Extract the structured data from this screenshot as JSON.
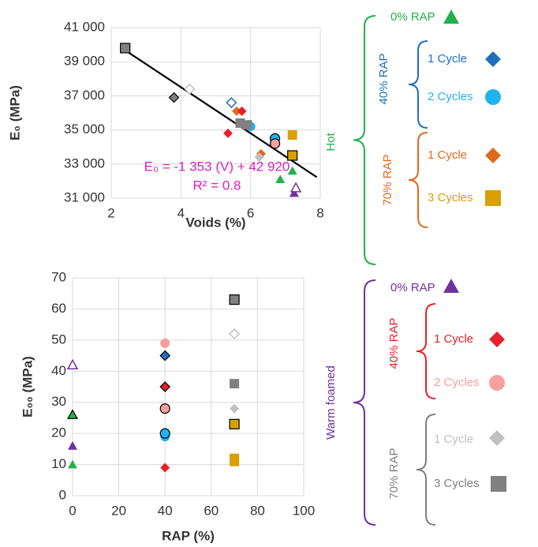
{
  "chart_data": [
    {
      "type": "scatter",
      "xlabel": "Voids (%)",
      "ylabel": "E₀ (MPa)",
      "xlim": [
        2,
        8
      ],
      "xticks": [
        2,
        4,
        6,
        8
      ],
      "ylim": [
        31000,
        41000
      ],
      "yticks": [
        {
          "value": 31000,
          "label": "31 000"
        },
        {
          "value": 33000,
          "label": "33 000"
        },
        {
          "value": 35000,
          "label": "35 000"
        },
        {
          "value": 37000,
          "label": "37 000"
        },
        {
          "value": 39000,
          "label": "39 000"
        },
        {
          "value": 41000,
          "label": "41 000"
        }
      ],
      "grid": true,
      "annotations": [
        "E₀ = -1 353 (V) + 42 920",
        "R² = 0.8"
      ],
      "trendline": {
        "slope": -1353,
        "intercept": 42920,
        "color": "#000000"
      },
      "series": [
        {
          "color": "#22b14c",
          "marker": "triangle",
          "fill": "solid",
          "x": [
            7.2,
            6.85
          ],
          "values": [
            32600,
            32100
          ]
        },
        {
          "color": "#7030a0",
          "marker": "triangle",
          "fill": "solid",
          "x": [
            7.25
          ],
          "values": [
            31300
          ]
        },
        {
          "color": "#7030a0",
          "marker": "triangle",
          "fill": "open",
          "x": [
            7.3
          ],
          "values": [
            31600
          ]
        },
        {
          "color": "#1f6fbf",
          "marker": "diamond",
          "fill": "open",
          "x": [
            5.45
          ],
          "values": [
            36600
          ]
        },
        {
          "color": "#1fb3f0",
          "marker": "circle",
          "fill": "solid",
          "x": [
            6.0
          ],
          "values": [
            35200
          ]
        },
        {
          "color": "#1fb3f0",
          "marker": "circle",
          "fill": "outlined",
          "x": [
            6.7
          ],
          "values": [
            34500
          ]
        },
        {
          "color": "#e06a1a",
          "marker": "diamond",
          "fill": "solid",
          "x": [
            5.6,
            6.3
          ],
          "values": [
            36100,
            33600
          ]
        },
        {
          "color": "#d9a000",
          "marker": "square",
          "fill": "solid",
          "x": [
            7.2
          ],
          "values": [
            34700
          ]
        },
        {
          "color": "#d9a000",
          "marker": "square",
          "fill": "outlined",
          "x": [
            7.2
          ],
          "values": [
            33500
          ]
        },
        {
          "color": "#e8202a",
          "marker": "diamond",
          "fill": "solid",
          "x": [
            5.75,
            5.35
          ],
          "values": [
            36100,
            34800
          ]
        },
        {
          "color": "#f4a0a0",
          "marker": "circle",
          "fill": "outlined",
          "x": [
            6.7
          ],
          "values": [
            34200
          ]
        },
        {
          "color": "#c0c0c0",
          "marker": "diamond",
          "fill": "open",
          "x": [
            4.25
          ],
          "values": [
            37400
          ]
        },
        {
          "color": "#c0c0c0",
          "marker": "diamond",
          "fill": "solid",
          "x": [
            6.25
          ],
          "values": [
            33400
          ]
        },
        {
          "color": "#808080",
          "marker": "square",
          "fill": "outlined",
          "x": [
            2.4
          ],
          "values": [
            39800
          ]
        },
        {
          "color": "#808080",
          "marker": "square",
          "fill": "solid",
          "x": [
            5.7,
            5.9
          ],
          "values": [
            35400,
            35300
          ]
        },
        {
          "color": "#808080",
          "marker": "diamond",
          "fill": "outlined",
          "x": [
            3.8
          ],
          "values": [
            36900
          ]
        }
      ]
    },
    {
      "type": "scatter",
      "xlabel": "RAP (%)",
      "ylabel": "E₀₀ (MPa)",
      "xlim": [
        0,
        100
      ],
      "xticks": [
        0,
        20,
        40,
        60,
        80,
        100
      ],
      "ylim": [
        0,
        70
      ],
      "yticks": [
        0,
        10,
        20,
        30,
        40,
        50,
        60,
        70
      ],
      "grid": true,
      "series": [
        {
          "color": "#7030a0",
          "marker": "triangle",
          "fill": "open",
          "x": [
            0
          ],
          "values": [
            42
          ]
        },
        {
          "color": "#7030a0",
          "marker": "triangle",
          "fill": "solid",
          "x": [
            0
          ],
          "values": [
            16
          ]
        },
        {
          "color": "#22b14c",
          "marker": "triangle",
          "fill": "outlined",
          "x": [
            0
          ],
          "values": [
            26
          ]
        },
        {
          "color": "#22b14c",
          "marker": "triangle",
          "fill": "solid",
          "x": [
            0
          ],
          "values": [
            10
          ]
        },
        {
          "color": "#1f6fbf",
          "marker": "diamond",
          "fill": "outlined",
          "x": [
            40
          ],
          "values": [
            45
          ]
        },
        {
          "color": "#f4a0a0",
          "marker": "circle",
          "fill": "solid",
          "x": [
            40
          ],
          "values": [
            49
          ]
        },
        {
          "color": "#f4a0a0",
          "marker": "circle",
          "fill": "outlined",
          "x": [
            40
          ],
          "values": [
            28
          ]
        },
        {
          "color": "#e8202a",
          "marker": "diamond",
          "fill": "outlined",
          "x": [
            40
          ],
          "values": [
            35
          ]
        },
        {
          "color": "#e8202a",
          "marker": "diamond",
          "fill": "solid",
          "x": [
            40
          ],
          "values": [
            9
          ]
        },
        {
          "color": "#1fb3f0",
          "marker": "circle",
          "fill": "solid",
          "x": [
            40
          ],
          "values": [
            19
          ]
        },
        {
          "color": "#1fb3f0",
          "marker": "circle",
          "fill": "outlined",
          "x": [
            40
          ],
          "values": [
            20
          ]
        },
        {
          "color": "#808080",
          "marker": "square",
          "fill": "outlined",
          "x": [
            70
          ],
          "values": [
            63
          ]
        },
        {
          "color": "#808080",
          "marker": "square",
          "fill": "solid",
          "x": [
            70
          ],
          "values": [
            36
          ]
        },
        {
          "color": "#c0c0c0",
          "marker": "diamond",
          "fill": "open",
          "x": [
            70
          ],
          "values": [
            52
          ]
        },
        {
          "color": "#c0c0c0",
          "marker": "diamond",
          "fill": "solid",
          "x": [
            70
          ],
          "values": [
            28
          ]
        },
        {
          "color": "#d9a000",
          "marker": "square",
          "fill": "outlined",
          "x": [
            70
          ],
          "values": [
            23
          ]
        },
        {
          "color": "#d9a000",
          "marker": "square",
          "fill": "solid",
          "x": [
            70,
            70
          ],
          "values": [
            12,
            11
          ]
        }
      ]
    }
  ],
  "legend": {
    "hot": {
      "label": "Hot",
      "rap0": "0% RAP",
      "rap40": "40% RAP",
      "rap40_1": "1 Cycle",
      "rap40_2": "2 Cycles",
      "rap70": "70% RAP",
      "rap70_1": "1 Cycle",
      "rap70_3": "3 Cycles"
    },
    "warm": {
      "label": "Warm foamed",
      "rap0": "0% RAP",
      "rap40": "40% RAP",
      "rap40_1": "1 Cycle",
      "rap40_2": "2 Cycles",
      "rap70": "70% RAP",
      "rap70_1": "1 Cycle",
      "rap70_3": "3 Cycles"
    }
  }
}
